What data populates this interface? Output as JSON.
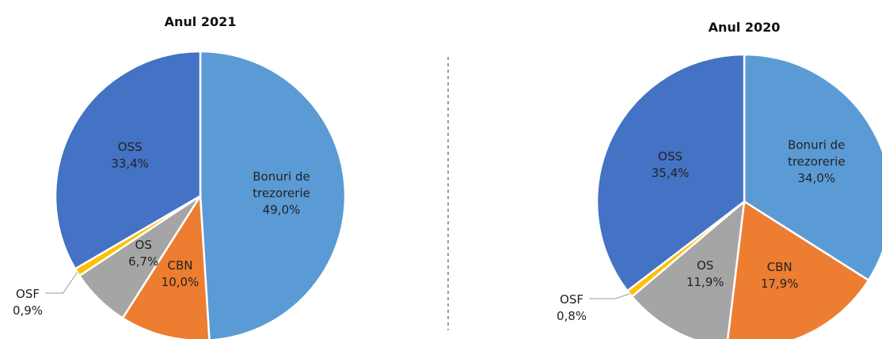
{
  "chart_data": [
    {
      "type": "pie",
      "title": "Anul 2021",
      "categories": [
        "Bonuri de trezorerie",
        "CBN",
        "OS",
        "OSF",
        "OSS"
      ],
      "values": [
        49.0,
        10.0,
        6.7,
        0.9,
        33.4
      ],
      "value_labels": [
        "49,0%",
        "10,0%",
        "6,7%",
        "0,9%",
        "33,4%"
      ],
      "colors": [
        "#5b9bd5",
        "#ed7d31",
        "#a5a5a5",
        "#ffc000",
        "#4472c4"
      ]
    },
    {
      "type": "pie",
      "title": "Anul 2020",
      "categories": [
        "Bonuri de trezorerie",
        "CBN",
        "OS",
        "OSF",
        "OSS"
      ],
      "values": [
        34.0,
        17.9,
        11.9,
        0.8,
        35.4
      ],
      "value_labels": [
        "34,0%",
        "17,9%",
        "11,9%",
        "0,8%",
        "35,4%"
      ],
      "colors": [
        "#5b9bd5",
        "#ed7d31",
        "#a5a5a5",
        "#ffc000",
        "#4472c4"
      ]
    }
  ]
}
